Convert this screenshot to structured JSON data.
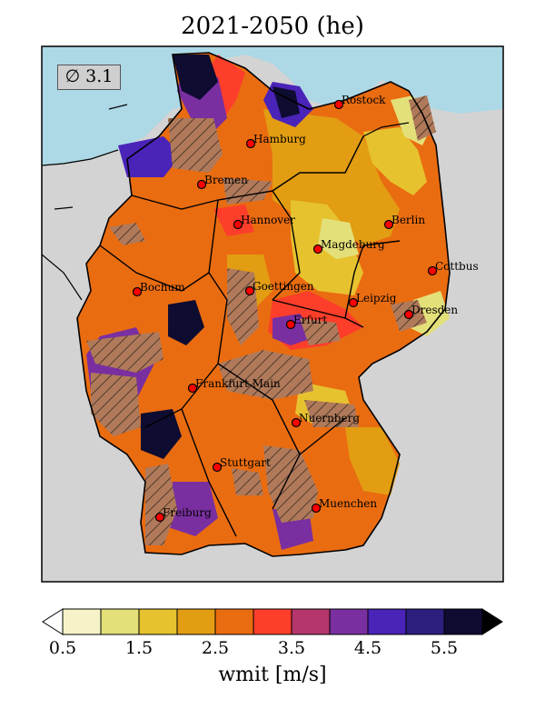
{
  "title": "2021-2050 (he)",
  "average_box": "∅  3.1",
  "colors": {
    "sea": "#add8e6",
    "outside_land": "#d3d3d3",
    "marker": "#ff0000",
    "hatch_fill": "#b07a5a"
  },
  "cities": [
    {
      "name": "Rostock"
    },
    {
      "name": "Hamburg"
    },
    {
      "name": "Bremen"
    },
    {
      "name": "Berlin"
    },
    {
      "name": "Hannover"
    },
    {
      "name": "Magdeburg"
    },
    {
      "name": "Cottbus"
    },
    {
      "name": "Bochum"
    },
    {
      "name": "Goettingen"
    },
    {
      "name": "Leipzig"
    },
    {
      "name": "Dresden"
    },
    {
      "name": "Erfurt"
    },
    {
      "name": "Frankfurt Main"
    },
    {
      "name": "Nuernberg"
    },
    {
      "name": "Stuttgart"
    },
    {
      "name": "Muenchen"
    },
    {
      "name": "Freiburg"
    }
  ],
  "colorbar": {
    "label": "wmit [m/s]",
    "ticks": [
      "0.5",
      "1.5",
      "2.5",
      "3.5",
      "4.5",
      "5.5"
    ],
    "colors": [
      "#f7f3c8",
      "#e3e07a",
      "#e6c22f",
      "#e29d12",
      "#ea6c10",
      "#fc3e2a",
      "#b4366a",
      "#7a2fa0",
      "#4a23b8",
      "#2b1f80",
      "#0e0c30"
    ],
    "under_color": "#ffffff",
    "over_color": "#000000"
  }
}
